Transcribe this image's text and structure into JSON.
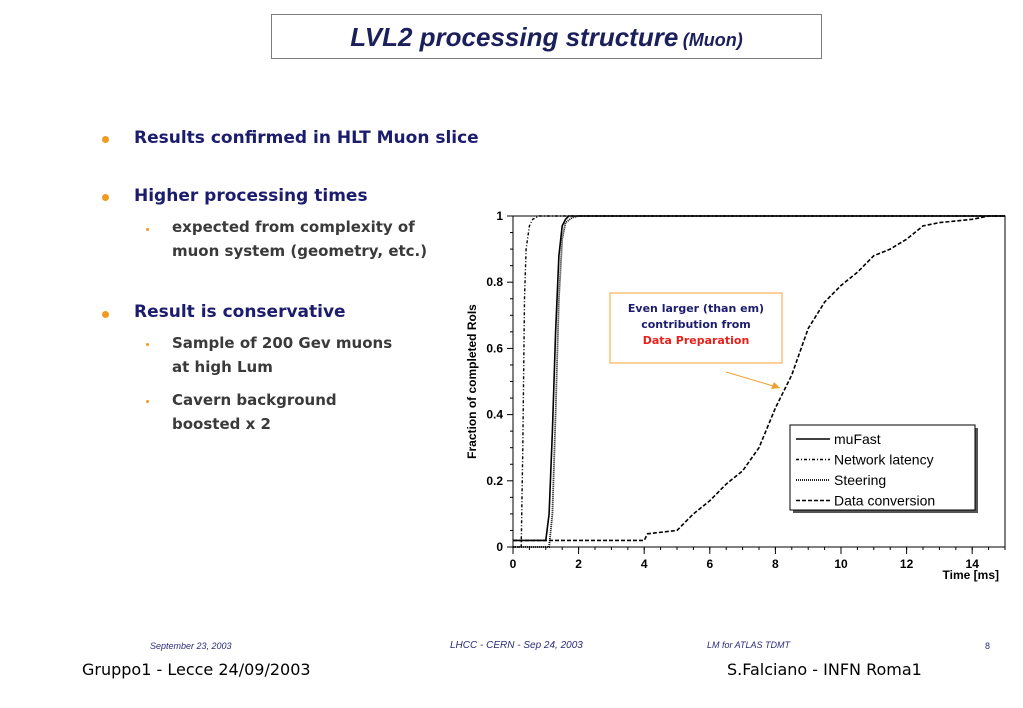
{
  "slide": {
    "title": "LVL2 processing structure",
    "title_suffix": "(Muon)",
    "bullets": [
      {
        "text": "Results confirmed in HLT Muon slice"
      },
      {
        "text": "Higher processing times",
        "subs": [
          "expected from complexity of",
          "muon system (geometry, etc.)"
        ]
      },
      {
        "text": "Result is conservative",
        "subs": [
          "Sample of 200 Gev muons",
          "at high Lum",
          "Cavern background",
          "boosted x 2"
        ]
      }
    ]
  },
  "chart_data": {
    "type": "line",
    "ylabel": "Fraction of completed RoIs",
    "xlabel": "Time [ms]",
    "xlim": [
      0,
      15
    ],
    "ylim": [
      0,
      1
    ],
    "xticks": [
      "0",
      "2",
      "4",
      "6",
      "8",
      "10",
      "12",
      "14"
    ],
    "yticks": [
      "0",
      "0.2",
      "0.4",
      "0.6",
      "0.8",
      "1"
    ],
    "legend_position": "bottom-right",
    "annotation": {
      "line1": "Even larger (than em)",
      "line2": "contribution from",
      "line3": "Data Preparation",
      "line3_color": "#e8201a"
    },
    "series": [
      {
        "name": "muFast",
        "style": "solid",
        "x": [
          0,
          1.0,
          1.1,
          1.2,
          1.3,
          1.4,
          1.5,
          1.6,
          1.7,
          15
        ],
        "y": [
          0.02,
          0.02,
          0.1,
          0.35,
          0.65,
          0.88,
          0.97,
          0.99,
          1.0,
          1.0
        ]
      },
      {
        "name": "Network latency",
        "style": "dashdot",
        "x": [
          0,
          0.25,
          0.3,
          0.35,
          0.4,
          0.5,
          0.6,
          0.8,
          1.0,
          15
        ],
        "y": [
          0.0,
          0.0,
          0.3,
          0.75,
          0.9,
          0.97,
          0.99,
          1.0,
          1.0,
          1.0
        ]
      },
      {
        "name": "Steering",
        "style": "dotted",
        "x": [
          0,
          1.1,
          1.2,
          1.3,
          1.4,
          1.5,
          1.6,
          1.8,
          2.0,
          15
        ],
        "y": [
          0.0,
          0.0,
          0.1,
          0.4,
          0.75,
          0.93,
          0.98,
          0.995,
          1.0,
          1.0
        ]
      },
      {
        "name": "Data conversion",
        "style": "dashed",
        "x": [
          0,
          4.0,
          4.1,
          5.0,
          5.5,
          6.0,
          6.5,
          7.0,
          7.5,
          8.0,
          8.5,
          9.0,
          9.5,
          10.0,
          10.5,
          11.0,
          11.5,
          12.0,
          12.5,
          13.0,
          13.5,
          14.0,
          14.5,
          15
        ],
        "y": [
          0.02,
          0.02,
          0.04,
          0.05,
          0.1,
          0.14,
          0.19,
          0.23,
          0.3,
          0.42,
          0.52,
          0.66,
          0.74,
          0.79,
          0.83,
          0.88,
          0.9,
          0.93,
          0.97,
          0.98,
          0.985,
          0.99,
          1.0,
          1.0
        ]
      }
    ]
  },
  "footer": {
    "date": "September 23, 2003",
    "conference": "LHCC - CERN - Sep 24, 2003",
    "group": "LM for ATLAS TDMT",
    "page": "8",
    "left": "Gruppo1 - Lecce 24/09/2003",
    "right": "S.Falciano - INFN Roma1"
  },
  "colors": {
    "title": "#1b1f5a",
    "bullet_text": "#1c1c6e",
    "bullet_dot": "#f09b1e",
    "annotation_border": "#f0a030",
    "arrow": "#f0a030"
  }
}
